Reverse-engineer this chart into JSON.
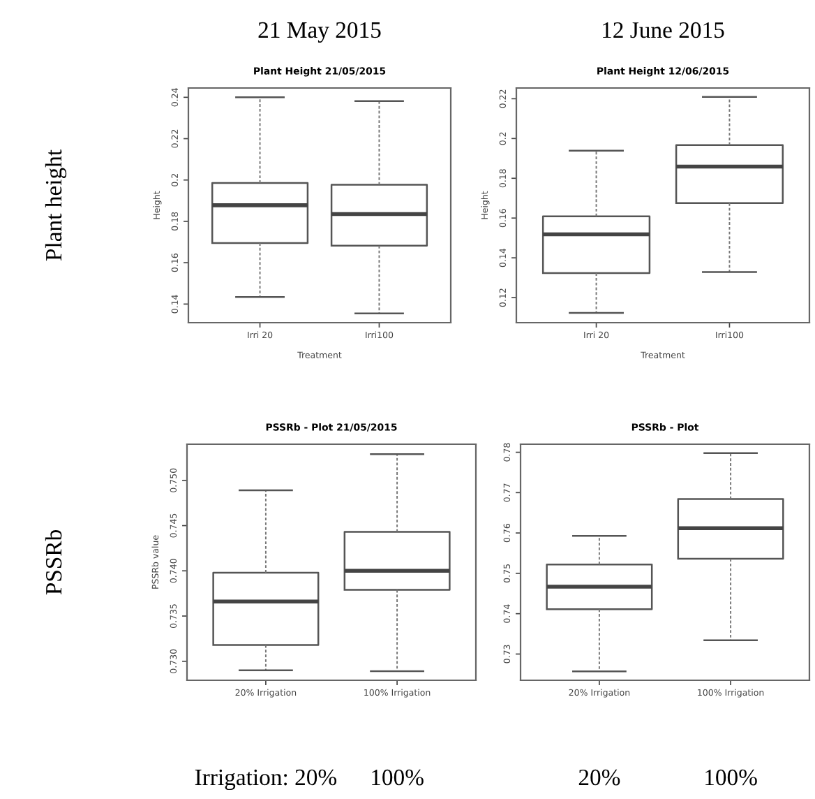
{
  "chart_data": [
    {
      "type": "box",
      "subtitle": "21 May 2015",
      "title": "Plant Height 21/05/2015",
      "xlabel": "Treatment",
      "ylabel": "Height",
      "categories": [
        "Irri 20",
        "Irri100"
      ],
      "boxes": [
        {
          "low": 0.1434,
          "q1": 0.1695,
          "median": 0.1878,
          "q3": 0.1986,
          "high": 0.24
        },
        {
          "low": 0.1355,
          "q1": 0.1682,
          "median": 0.1835,
          "q3": 0.1977,
          "high": 0.2382
        }
      ],
      "ylim": [
        0.131,
        0.2445
      ],
      "yticks": [
        0.14,
        0.16,
        0.18,
        0.2,
        0.22,
        0.24
      ],
      "annotations": [
        "Plant height"
      ]
    },
    {
      "type": "box",
      "subtitle": "12 June 2015",
      "title": "Plant Height 12/06/2015",
      "xlabel": "Treatment",
      "ylabel": "Height",
      "categories": [
        "Irri 20",
        "Irri100"
      ],
      "boxes": [
        {
          "low": 0.1123,
          "q1": 0.1323,
          "median": 0.1518,
          "q3": 0.1609,
          "high": 0.1939
        },
        {
          "low": 0.1329,
          "q1": 0.1675,
          "median": 0.1859,
          "q3": 0.1967,
          "high": 0.2209
        }
      ],
      "ylim": [
        0.1074,
        0.2254
      ],
      "yticks": [
        0.12,
        0.14,
        0.16,
        0.18,
        0.2,
        0.22
      ]
    },
    {
      "type": "box",
      "title": "PSSRb - Plot 21/05/2015",
      "ylabel": "PSSRb value",
      "categories": [
        "20% Irrigation",
        "100% Irrigation"
      ],
      "boxes": [
        {
          "low": 0.729,
          "q1": 0.7318,
          "median": 0.7366,
          "q3": 0.7398,
          "high": 0.7489
        },
        {
          "low": 0.7289,
          "q1": 0.7379,
          "median": 0.74,
          "q3": 0.7443,
          "high": 0.7529
        }
      ],
      "ylim": [
        0.7279,
        0.754
      ],
      "yticks": [
        {
          "value": 0.73,
          "label": "0.730"
        },
        0.735,
        {
          "value": 0.74,
          "label": "0.740"
        },
        0.745,
        {
          "value": 0.75,
          "label": "0.750"
        }
      ],
      "annotations": [
        "PSSRb",
        "Irrigation: 20%",
        "100%"
      ]
    },
    {
      "type": "box",
      "title": "PSSRb - Plot",
      "categories": [
        "20% Irrigation",
        "100% Irrigation"
      ],
      "boxes": [
        {
          "low": 0.7257,
          "q1": 0.7411,
          "median": 0.7467,
          "q3": 0.7522,
          "high": 0.7593
        },
        {
          "low": 0.7334,
          "q1": 0.7536,
          "median": 0.7612,
          "q3": 0.7684,
          "high": 0.7798
        }
      ],
      "ylim": [
        0.7235,
        0.782
      ],
      "yticks": [
        0.73,
        0.74,
        0.75,
        0.76,
        0.77,
        0.78
      ],
      "annotations": [
        "20%",
        "100%"
      ]
    }
  ]
}
